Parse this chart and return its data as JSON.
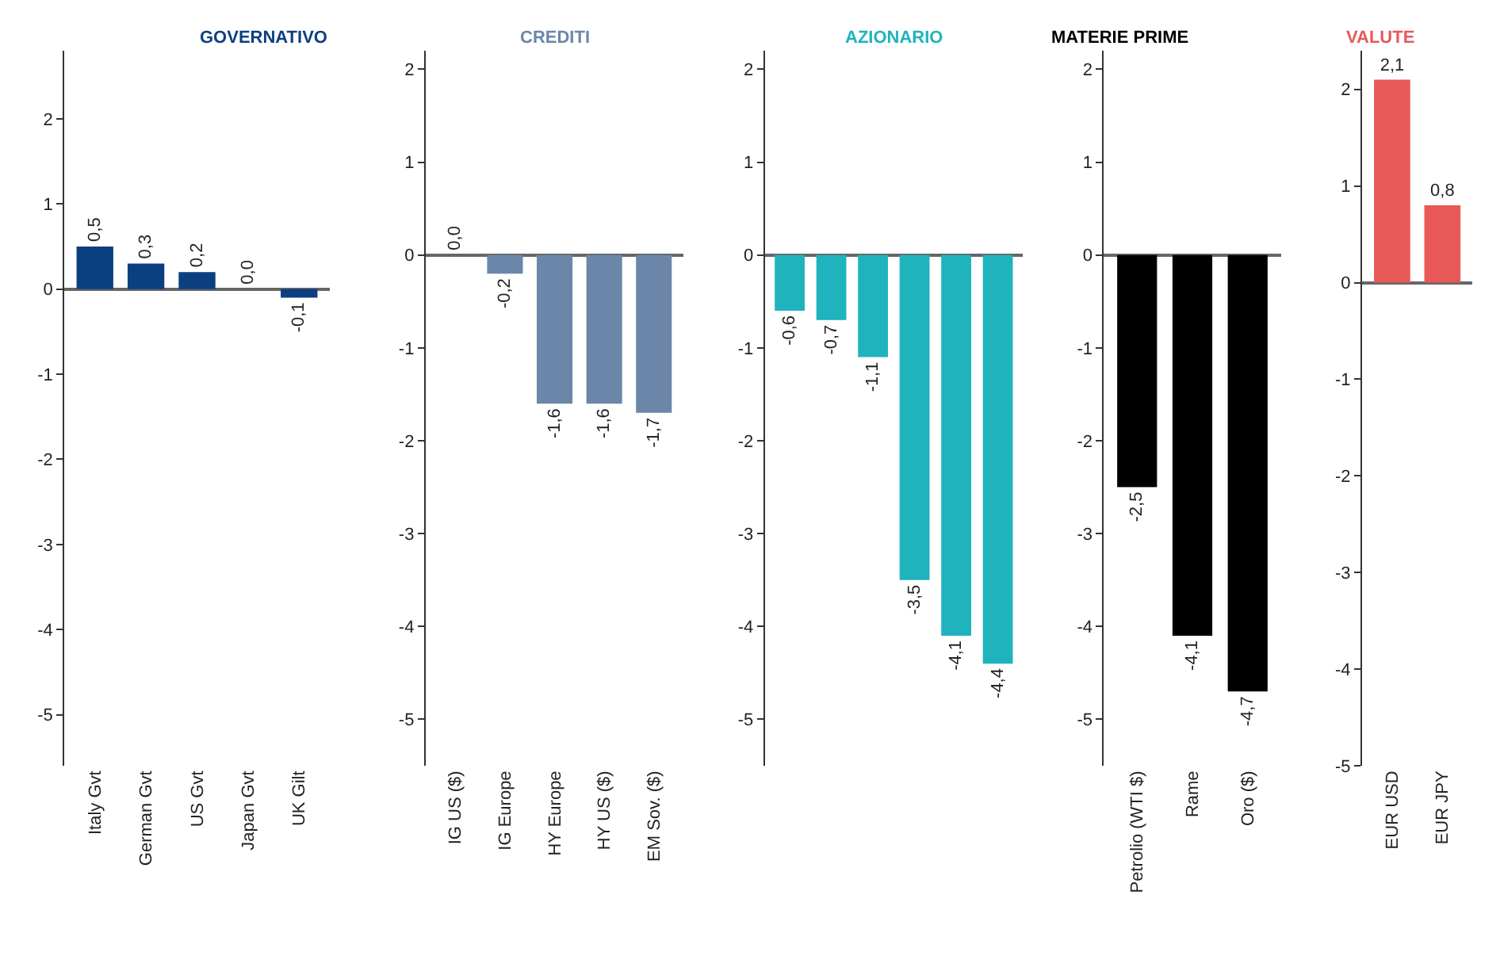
{
  "chart_data": [
    {
      "type": "bar",
      "title": "GOVERNATIVO",
      "categories": [
        "Italy Gvt",
        "German Gvt",
        "US Gvt",
        "Japan Gvt",
        "UK Gilt"
      ],
      "values": [
        0.5,
        0.3,
        0.2,
        0.0,
        -0.1
      ],
      "value_labels": [
        "0,5",
        "0,3",
        "0,2",
        "0,0",
        "-0,1"
      ],
      "color": "#0b3f80",
      "ylim": [
        -5.6,
        2.8
      ],
      "yticks": [
        -5,
        -4,
        -3,
        -2,
        -1,
        0,
        1,
        2
      ]
    },
    {
      "type": "bar",
      "title": "CREDITI",
      "categories": [
        "IG US ($)",
        "IG Europe",
        "HY Europe",
        "HY US ($)",
        "EM Sov. ($)"
      ],
      "values": [
        0.0,
        -0.2,
        -1.6,
        -1.6,
        -1.7
      ],
      "value_labels": [
        "0,0",
        "-0,2",
        "-1,6",
        "-1,6",
        "-1,7"
      ],
      "color": "#6b86a8",
      "ylim": [
        -5.5,
        2.2
      ],
      "yticks": [
        -5,
        -4,
        -3,
        -2,
        -1,
        0,
        1,
        2
      ]
    },
    {
      "type": "bar",
      "title": "AZIONARIO",
      "categories": [
        null,
        null,
        null,
        null,
        null,
        null
      ],
      "values": [
        -0.6,
        -0.7,
        -1.1,
        -3.5,
        -4.1,
        -4.4
      ],
      "value_labels": [
        "-0,6",
        "-0,7",
        "-1,1",
        "-3,5",
        "-4,1",
        "-4,4"
      ],
      "color": "#1fb3be",
      "ylim": [
        -5.5,
        2.2
      ],
      "yticks": [
        -5,
        -4,
        -3,
        -2,
        -1,
        0,
        1,
        2
      ]
    },
    {
      "type": "bar",
      "title": "MATERIE PRIME",
      "categories": [
        "Petrolio (WTI $)",
        "Rame",
        "Oro ($)"
      ],
      "values": [
        -2.5,
        -4.1,
        -4.7
      ],
      "value_labels": [
        "-2,5",
        "-4,1",
        "-4,7"
      ],
      "color": "#000000",
      "ylim": [
        -5.5,
        2.2
      ],
      "yticks": [
        -5,
        -4,
        -3,
        -2,
        -1,
        0,
        1,
        2
      ]
    },
    {
      "type": "bar",
      "title": "VALUTE",
      "categories": [
        "EUR USD",
        "EUR JPY"
      ],
      "values": [
        2.1,
        0.8
      ],
      "value_labels": [
        "2,1",
        "0,8"
      ],
      "color": "#e85858",
      "ylim": [
        -5.0,
        2.4
      ],
      "yticks": [
        -5,
        -4,
        -3,
        -2,
        -1,
        0,
        1,
        2
      ]
    }
  ]
}
